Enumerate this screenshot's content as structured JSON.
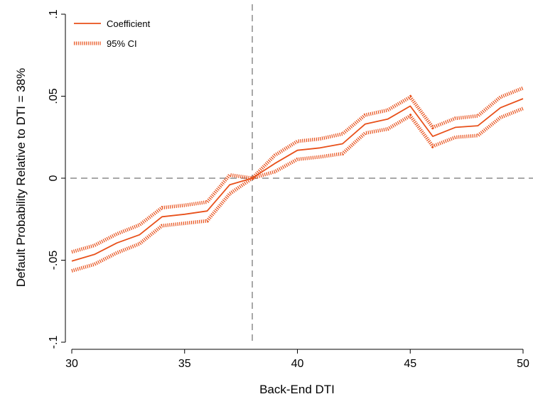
{
  "chart_data": {
    "type": "line",
    "xlabel": "Back-End DTI",
    "ylabel": "Default Probability Relative to DTI = 38%",
    "xlim": [
      30,
      50
    ],
    "ylim": [
      -0.1,
      0.1
    ],
    "x_ticks": [
      30,
      35,
      40,
      45,
      50
    ],
    "x_tick_labels": [
      "30",
      "35",
      "40",
      "45",
      "50"
    ],
    "y_ticks": [
      -0.1,
      -0.05,
      0,
      0.05,
      0.1
    ],
    "y_tick_labels": [
      "-.1",
      "-.05",
      "0",
      ".05",
      ".1"
    ],
    "reference_lines": {
      "x": 38,
      "y": 0
    },
    "grid": false,
    "legend_position": "top-left",
    "colors": {
      "series": "#e8501a",
      "reference": "#8c8c8c"
    },
    "x": [
      30,
      31,
      32,
      33,
      34,
      35,
      36,
      37,
      38,
      39,
      40,
      41,
      42,
      43,
      44,
      45,
      46,
      47,
      48,
      49,
      50
    ],
    "series": [
      {
        "name": "Coefficient",
        "style": "solid",
        "values": [
          -0.0505,
          -0.0465,
          -0.0395,
          -0.0345,
          -0.0235,
          -0.022,
          -0.02,
          -0.004,
          0.0,
          0.009,
          0.017,
          0.0185,
          0.021,
          0.033,
          0.036,
          0.044,
          0.0255,
          0.031,
          0.032,
          0.043,
          0.0485
        ]
      },
      {
        "name": "95% CI",
        "style": "dotted",
        "upper": [
          -0.045,
          -0.041,
          -0.034,
          -0.0285,
          -0.018,
          -0.0165,
          -0.0145,
          0.002,
          0.0,
          0.014,
          0.0225,
          0.024,
          0.027,
          0.0385,
          0.0415,
          0.0495,
          0.031,
          0.0365,
          0.038,
          0.0495,
          0.055
        ],
        "lower": [
          -0.0565,
          -0.0525,
          -0.0455,
          -0.04,
          -0.029,
          -0.0275,
          -0.026,
          -0.0095,
          0.0,
          0.004,
          0.0115,
          0.013,
          0.015,
          0.0275,
          0.03,
          0.038,
          0.0195,
          0.025,
          0.026,
          0.037,
          0.0425
        ]
      }
    ]
  }
}
